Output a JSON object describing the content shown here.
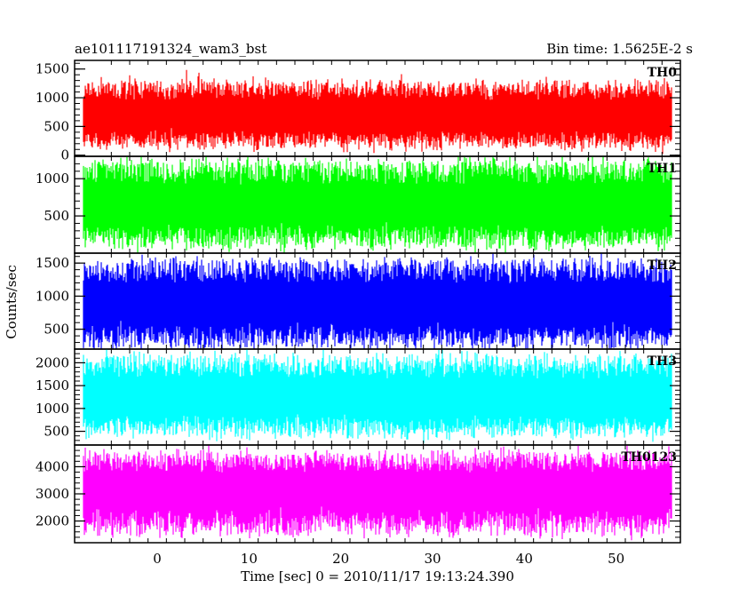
{
  "chart_data": {
    "type": "line",
    "title_left": "ae101117191324_wam3_bst",
    "title_right": "Bin time: 1.5625E-2 s",
    "xlabel": "Time [sec] 0 = 2010/11/17 19:13:24.390",
    "ylabel": "Counts/sec",
    "xlim": [
      -9,
      57
    ],
    "data_xrange": [
      -8,
      56
    ],
    "x_ticks": [
      "0",
      "10",
      "20",
      "30",
      "40",
      "50"
    ],
    "x_tick_values": [
      0,
      10,
      20,
      30,
      40,
      50
    ],
    "grid": false,
    "panels": [
      {
        "name": "TH0",
        "color": "#ff0000",
        "ylim": [
          -20,
          1650
        ],
        "y_ticks": [
          "0",
          "500",
          "1000",
          "1500"
        ],
        "y_tick_values": [
          0,
          500,
          1000,
          1500
        ],
        "approx_mean": 600,
        "approx_low": 120,
        "approx_high": 1250
      },
      {
        "name": "TH1",
        "color": "#00ff00",
        "ylim": [
          0,
          1300
        ],
        "y_ticks": [
          "500",
          "1000"
        ],
        "y_tick_values": [
          500,
          1000
        ],
        "approx_mean": 560,
        "approx_low": 80,
        "approx_high": 1200
      },
      {
        "name": "TH2",
        "color": "#0000ff",
        "ylim": [
          200,
          1650
        ],
        "y_ticks": [
          "500",
          "1000",
          "1500"
        ],
        "y_tick_values": [
          500,
          1000,
          1500
        ],
        "approx_mean": 800,
        "approx_low": 220,
        "approx_high": 1500
      },
      {
        "name": "TH3",
        "color": "#00ffff",
        "ylim": [
          200,
          2300
        ],
        "y_ticks": [
          "500",
          "1000",
          "1500",
          "2000"
        ],
        "y_tick_values": [
          500,
          1000,
          1500,
          2000
        ],
        "approx_mean": 1100,
        "approx_low": 400,
        "approx_high": 2100
      },
      {
        "name": "TH0123",
        "color": "#ff00ff",
        "ylim": [
          1200,
          4800
        ],
        "y_ticks": [
          "2000",
          "3000",
          "4000"
        ],
        "y_tick_values": [
          2000,
          3000,
          4000
        ],
        "approx_mean": 3000,
        "approx_low": 1500,
        "approx_high": 4400
      }
    ]
  }
}
